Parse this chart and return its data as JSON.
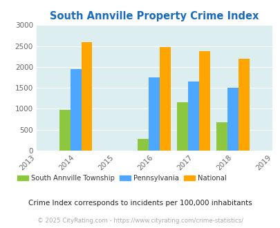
{
  "title": "South Annville Property Crime Index",
  "data_years": [
    2014,
    2016,
    2017,
    2018
  ],
  "south_annville": [
    975,
    275,
    1150,
    675
  ],
  "pennsylvania": [
    1950,
    1750,
    1650,
    1500
  ],
  "national": [
    2600,
    2475,
    2375,
    2200
  ],
  "color_south": "#8dc63f",
  "color_penn": "#4da6ff",
  "color_national": "#ffa500",
  "bg_color": "#ddeef0",
  "title_color": "#1a6bbf",
  "legend_label_south": "South Annville Township",
  "legend_label_penn": "Pennsylvania",
  "legend_label_national": "National",
  "note": "Crime Index corresponds to incidents per 100,000 inhabitants",
  "copyright": "© 2025 CityRating.com - https://www.cityrating.com/crime-statistics/",
  "ylim": [
    0,
    3000
  ],
  "yticks": [
    0,
    500,
    1000,
    1500,
    2000,
    2500,
    3000
  ],
  "xlim": [
    2013,
    2019
  ],
  "xticks": [
    2013,
    2014,
    2015,
    2016,
    2017,
    2018,
    2019
  ],
  "bar_width": 0.28
}
